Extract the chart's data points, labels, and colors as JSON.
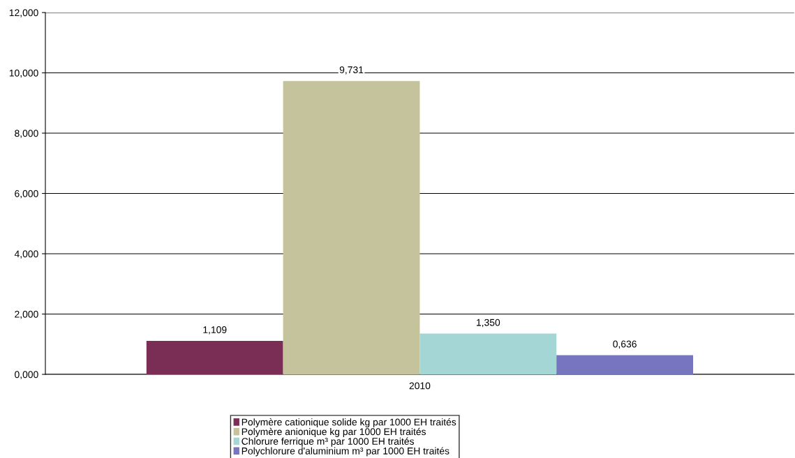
{
  "chart_data": {
    "type": "bar",
    "categories": [
      "2010"
    ],
    "series": [
      {
        "name": "Polymère cationique solide kg par 1000 EH traités",
        "color": "#7a2d55",
        "values": [
          1.109
        ],
        "value_labels": [
          "1,109"
        ]
      },
      {
        "name": "Polymère anionique kg par 1000 EH traités",
        "color": "#c4c39c",
        "values": [
          9.731
        ],
        "value_labels": [
          "9,731"
        ]
      },
      {
        "name": "Chlorure ferrique m³ par 1000 EH traités",
        "color": "#a3d6d4",
        "values": [
          1.35
        ],
        "value_labels": [
          "1,350"
        ]
      },
      {
        "name": "Polychlorure d'aluminium m³ par 1000 EH traités",
        "color": "#7774c0",
        "values": [
          0.636
        ],
        "value_labels": [
          "0,636"
        ]
      }
    ],
    "ylim": [
      0,
      12
    ],
    "yticks": [
      {
        "value": 0,
        "label": "0,000"
      },
      {
        "value": 2,
        "label": "2,000"
      },
      {
        "value": 4,
        "label": "4,000"
      },
      {
        "value": 6,
        "label": "6,000"
      },
      {
        "value": 8,
        "label": "8,000"
      },
      {
        "value": 10,
        "label": "10,000"
      },
      {
        "value": 12,
        "label": "12,000"
      }
    ],
    "grid": "y",
    "legend": "bottom"
  }
}
